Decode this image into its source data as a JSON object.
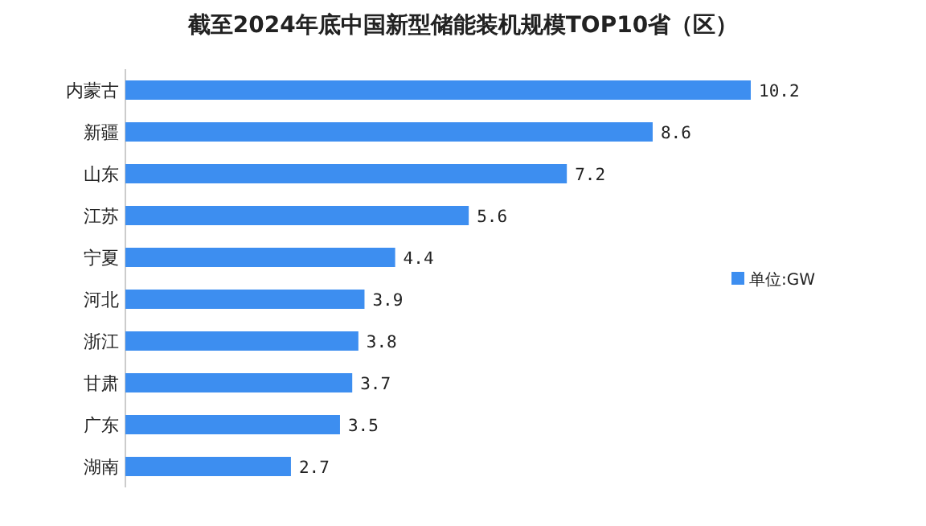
{
  "chart_data": {
    "type": "bar",
    "orientation": "horizontal",
    "title": "截至2024年底中国新型储能装机规模TOP10省（区）",
    "categories": [
      "内蒙古",
      "新疆",
      "山东",
      "江苏",
      "宁夏",
      "河北",
      "浙江",
      "甘肃",
      "广东",
      "湖南"
    ],
    "series": [
      {
        "name": "单位:GW",
        "color": "#3d8ef0",
        "values": [
          10.2,
          8.6,
          7.2,
          5.6,
          4.4,
          3.9,
          3.8,
          3.7,
          3.5,
          2.7
        ]
      }
    ],
    "data_labels": true,
    "legend": "right"
  }
}
